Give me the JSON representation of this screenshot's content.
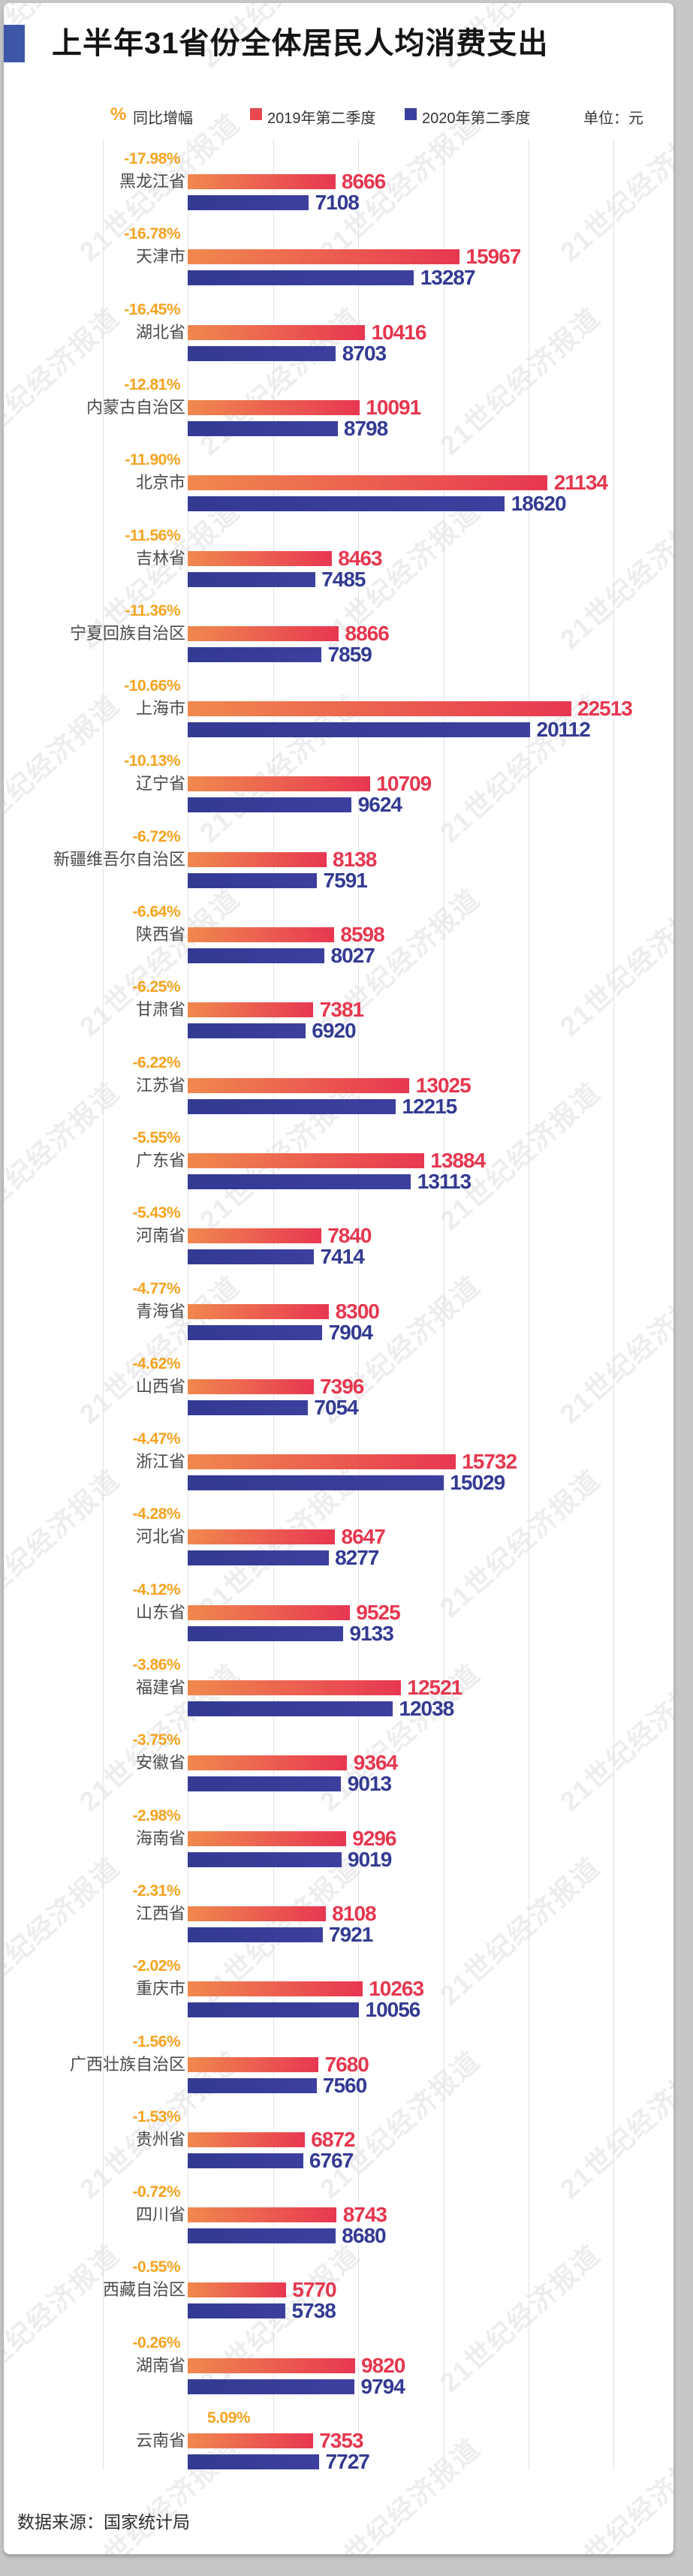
{
  "title": "上半年31省份全体居民人均消费支出",
  "legend": {
    "pct_symbol": "%",
    "pct_label": "同比增幅",
    "series1": "2019年第二季度",
    "series2": "2020年第二季度",
    "unit": "单位：元"
  },
  "watermark": "21世纪经济报道",
  "footer": "数据来源：国家统计局",
  "colors": {
    "background": "#c7c7c9",
    "card": "#ffffff",
    "title_marker_blue": "#3d56a8",
    "pct_orange": "#f5a31f",
    "bar_2019_gradient_left": "#f0894e",
    "bar_2019_gradient_right": "#e73751",
    "bar_2019_value_text": "#e6374e",
    "bar_2020_blue": "#363c95",
    "bar_2020_value_text": "#333a92",
    "province_text": "#4a4a4a",
    "gridline": "#e2e2e6"
  },
  "chart_data": {
    "type": "bar",
    "orientation": "horizontal",
    "title": "上半年31省份全体居民人均消费支出",
    "unit": "元",
    "xlim": [
      0,
      25000
    ],
    "gridline_step": 5000,
    "grid": true,
    "legend_position": "top",
    "categories": [
      "黑龙江省",
      "天津市",
      "湖北省",
      "内蒙古自治区",
      "北京市",
      "吉林省",
      "宁夏回族自治区",
      "上海市",
      "辽宁省",
      "新疆维吾尔自治区",
      "陕西省",
      "甘肃省",
      "江苏省",
      "广东省",
      "河南省",
      "青海省",
      "山西省",
      "浙江省",
      "河北省",
      "山东省",
      "福建省",
      "安徽省",
      "海南省",
      "江西省",
      "重庆市",
      "广西壮族自治区",
      "贵州省",
      "四川省",
      "西藏自治区",
      "湖南省",
      "云南省"
    ],
    "pct_change": [
      "-17.98%",
      "-16.78%",
      "-16.45%",
      "-12.81%",
      "-11.90%",
      "-11.56%",
      "-11.36%",
      "-10.66%",
      "-10.13%",
      "-6.72%",
      "-6.64%",
      "-6.25%",
      "-6.22%",
      "-5.55%",
      "-5.43%",
      "-4.77%",
      "-4.62%",
      "-4.47%",
      "-4.28%",
      "-4.12%",
      "-3.86%",
      "-3.75%",
      "-2.98%",
      "-2.31%",
      "-2.02%",
      "-1.56%",
      "-1.53%",
      "-0.72%",
      "-0.55%",
      "-0.26%",
      "5.09%"
    ],
    "series": [
      {
        "name": "2019年第二季度",
        "color": "#e9494e",
        "values": [
          8666,
          15967,
          10416,
          10091,
          21134,
          8463,
          8866,
          22513,
          10709,
          8138,
          8598,
          7381,
          13025,
          13884,
          7840,
          8300,
          7396,
          15732,
          8647,
          9525,
          12521,
          9364,
          9296,
          8108,
          10263,
          7680,
          6872,
          8743,
          5770,
          9820,
          7353
        ]
      },
      {
        "name": "2020年第二季度",
        "color": "#3a3f9d",
        "values": [
          7108,
          13287,
          8703,
          8798,
          18620,
          7485,
          7859,
          20112,
          9624,
          7591,
          8027,
          6920,
          12215,
          13113,
          7414,
          7904,
          7054,
          15029,
          8277,
          9133,
          12038,
          9013,
          9019,
          7921,
          10056,
          7560,
          6767,
          8680,
          5738,
          9794,
          7727
        ]
      }
    ]
  }
}
